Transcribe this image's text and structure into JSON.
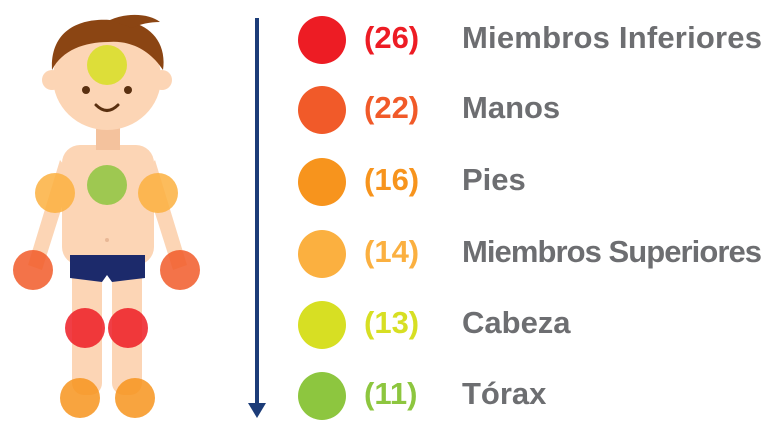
{
  "items": [
    {
      "label": "Miembros Inferiores",
      "count": "(26)",
      "color": "#ed1c24"
    },
    {
      "label": "Manos",
      "count": "(22)",
      "color": "#f15a29"
    },
    {
      "label": "Pies",
      "count": "(16)",
      "color": "#f7941d"
    },
    {
      "label": "Miembros Superiores",
      "count": "(14)",
      "color": "#fbb040"
    },
    {
      "label": "Cabeza",
      "count": "(13)",
      "color": "#d7df23"
    },
    {
      "label": "Tórax",
      "count": "(11)",
      "color": "#8dc63f"
    }
  ]
}
